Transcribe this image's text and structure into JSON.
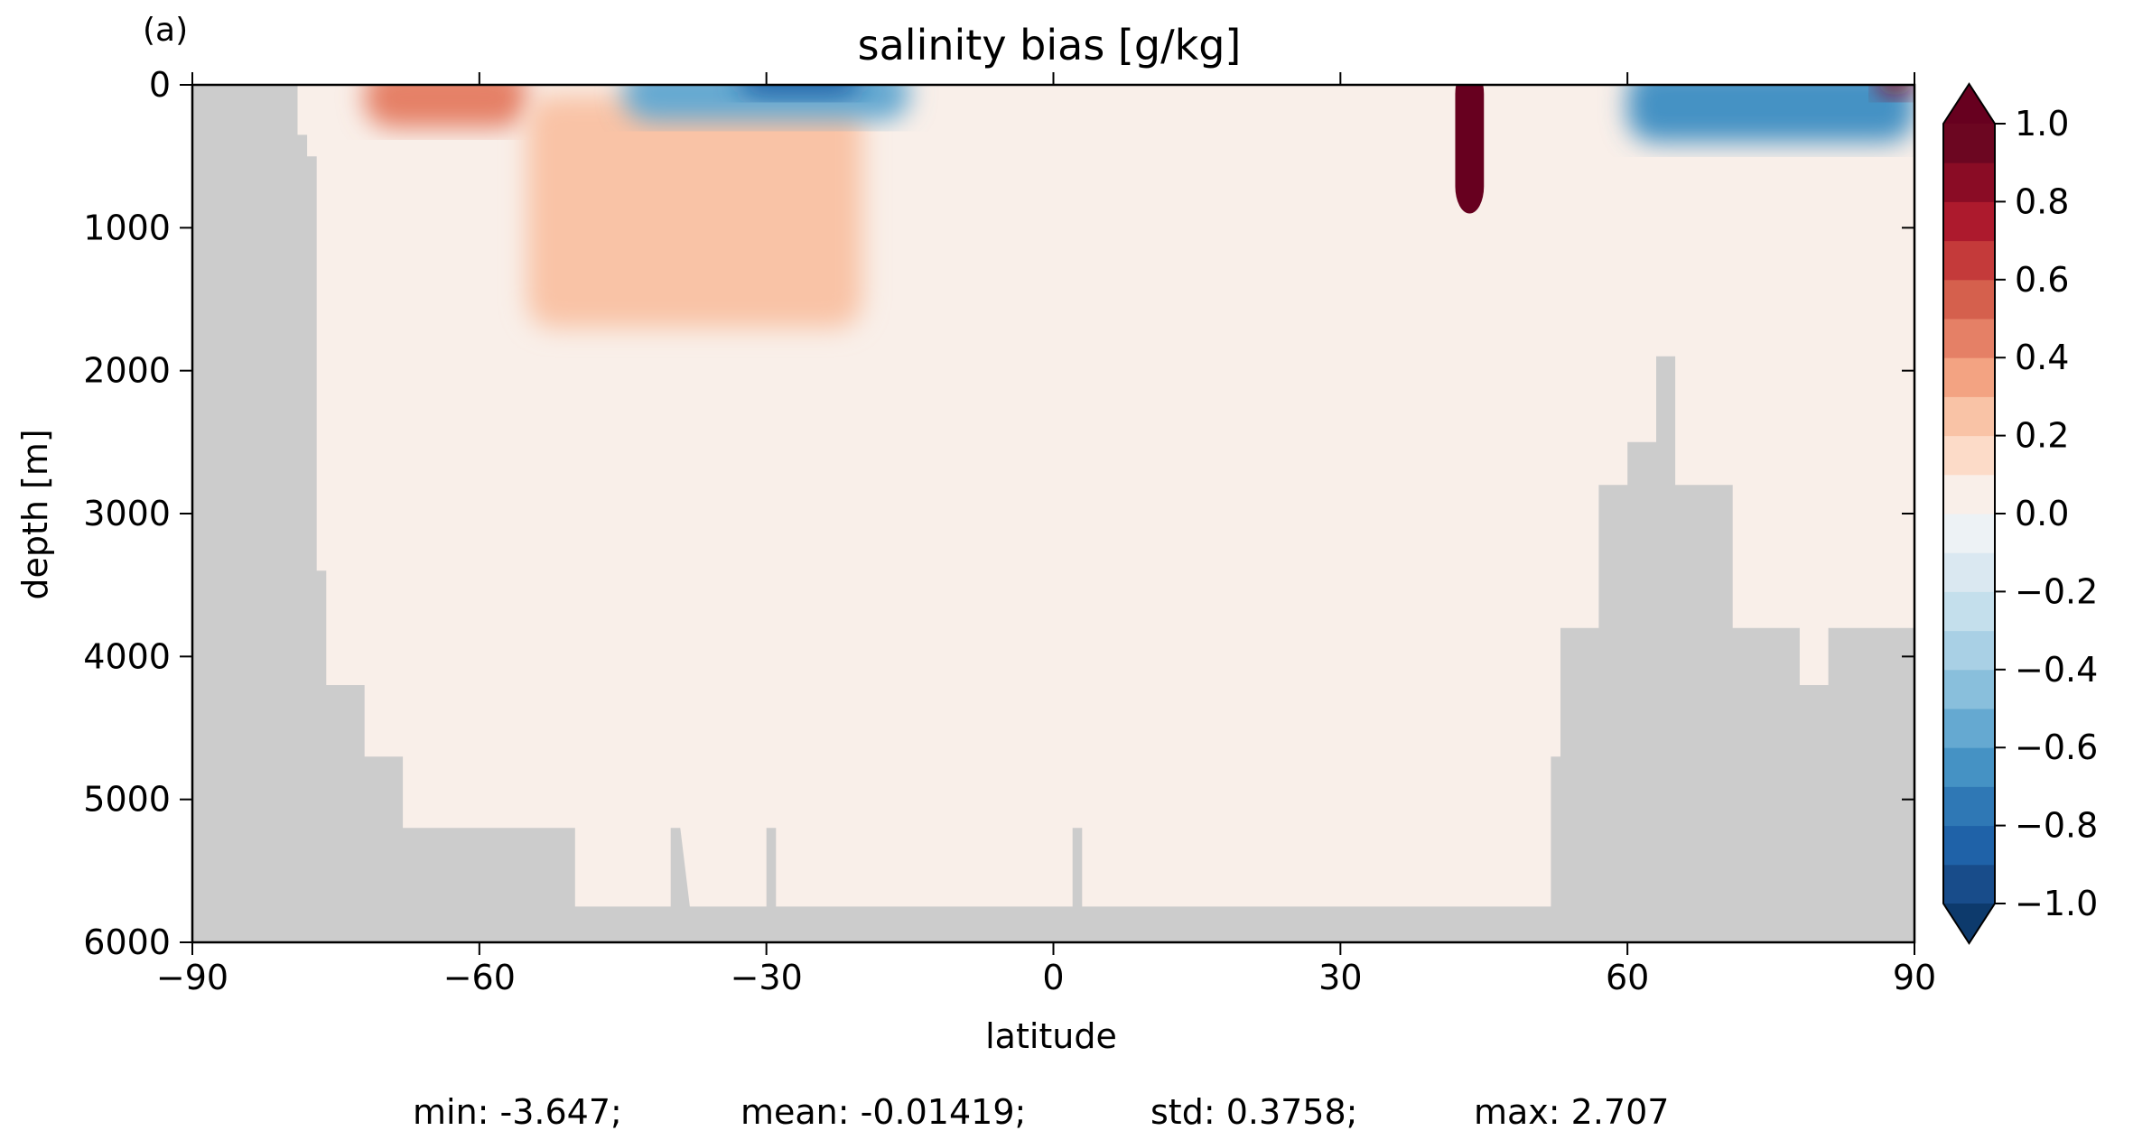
{
  "panel_label": "(a)",
  "chart_data": {
    "type": "heatmap",
    "title": "salinity bias [g/kg]",
    "xlabel": "latitude",
    "ylabel": "depth [m]",
    "xlim": [
      -90,
      90
    ],
    "ylim": [
      6000,
      0
    ],
    "x_ticks": [
      -90,
      -60,
      -30,
      0,
      30,
      60,
      90
    ],
    "x_tick_labels": [
      "−90",
      "−60",
      "−30",
      "0",
      "30",
      "60",
      "90"
    ],
    "y_ticks": [
      0,
      1000,
      2000,
      3000,
      4000,
      5000,
      6000
    ],
    "y_tick_labels": [
      "0",
      "1000",
      "2000",
      "3000",
      "4000",
      "5000",
      "6000"
    ],
    "colorbar": {
      "levels": [
        -1.0,
        -0.9,
        -0.8,
        -0.7,
        -0.6,
        -0.5,
        -0.4,
        -0.3,
        -0.2,
        -0.1,
        0.0,
        0.1,
        0.2,
        0.3,
        0.4,
        0.5,
        0.6,
        0.7,
        0.8,
        0.9,
        1.0
      ],
      "colors": [
        "#184c8a",
        "#1f62a8",
        "#2f78b5",
        "#4592c4",
        "#65a9d1",
        "#89bfdc",
        "#a9d0e5",
        "#c4dfec",
        "#dae8f1",
        "#edf2f5",
        "#f9efe9",
        "#fcdbc8",
        "#f9c3a6",
        "#f3a382",
        "#e58066",
        "#d5604d",
        "#c43a3a",
        "#ad1a2d",
        "#8a0c25",
        "#6c0621"
      ],
      "under_color": "#0d3a6c",
      "over_color": "#67001f",
      "extend": "both",
      "ticks": [
        1.0,
        0.8,
        0.6,
        0.4,
        0.2,
        0.0,
        -0.2,
        -0.4,
        -0.6,
        -0.8,
        -1.0
      ],
      "tick_labels": [
        "1.0",
        "0.8",
        "0.6",
        "0.4",
        "0.2",
        "0.0",
        "−0.2",
        "−0.4",
        "−0.6",
        "−0.8",
        "−1.0"
      ]
    },
    "land_color": "#cccccc",
    "bathymetry": [
      [
        -90,
        0
      ],
      [
        -79,
        0
      ],
      [
        -79,
        350
      ],
      [
        -78,
        350
      ],
      [
        -78,
        500
      ],
      [
        -77,
        500
      ],
      [
        -77,
        3400
      ],
      [
        -76,
        3400
      ],
      [
        -76,
        4200
      ],
      [
        -72,
        4200
      ],
      [
        -72,
        4700
      ],
      [
        -68,
        4700
      ],
      [
        -68,
        5200
      ],
      [
        -50,
        5200
      ],
      [
        -50,
        5750
      ],
      [
        -40,
        5750
      ],
      [
        -40,
        5200
      ],
      [
        -39,
        5200
      ],
      [
        -38,
        5750
      ],
      [
        -30,
        5750
      ],
      [
        -30,
        5200
      ],
      [
        -29,
        5200
      ],
      [
        -29,
        5750
      ],
      [
        2,
        5750
      ],
      [
        2,
        5200
      ],
      [
        3,
        5200
      ],
      [
        3,
        5750
      ],
      [
        52,
        5750
      ],
      [
        52,
        4700
      ],
      [
        53,
        4700
      ],
      [
        53,
        3800
      ],
      [
        57,
        3800
      ],
      [
        57,
        2800
      ],
      [
        60,
        2800
      ],
      [
        60,
        2500
      ],
      [
        63,
        2500
      ],
      [
        63,
        1900
      ],
      [
        65,
        1900
      ],
      [
        65,
        2800
      ],
      [
        71,
        2800
      ],
      [
        71,
        3800
      ],
      [
        78,
        3800
      ],
      [
        78,
        4200
      ],
      [
        81,
        4200
      ],
      [
        81,
        3800
      ],
      [
        85,
        3800
      ],
      [
        85,
        3800
      ],
      [
        90,
        3800
      ]
    ],
    "bias_regions": [
      {
        "lat": [
          -72,
          -55
        ],
        "depth": [
          0,
          300
        ],
        "value": 0.45
      },
      {
        "lat": [
          -55,
          -20
        ],
        "depth": [
          200,
          1700
        ],
        "value": 0.25
      },
      {
        "lat": [
          -45,
          -15
        ],
        "depth": [
          0,
          250
        ],
        "value": -0.5
      },
      {
        "lat": [
          -33,
          -20
        ],
        "depth": [
          0,
          80
        ],
        "value": -0.85
      },
      {
        "lat": [
          42,
          45
        ],
        "depth": [
          0,
          900
        ],
        "value": 1.1
      },
      {
        "lat": [
          60,
          90
        ],
        "depth": [
          0,
          400
        ],
        "value": -0.6
      },
      {
        "lat": [
          86,
          90
        ],
        "depth": [
          0,
          80
        ],
        "value": 0.9
      }
    ],
    "stats": {
      "min_label": "min: -3.647;",
      "mean_label": "mean: -0.01419;",
      "std_label": "std: 0.3758;",
      "max_label": "max: 2.707"
    }
  }
}
